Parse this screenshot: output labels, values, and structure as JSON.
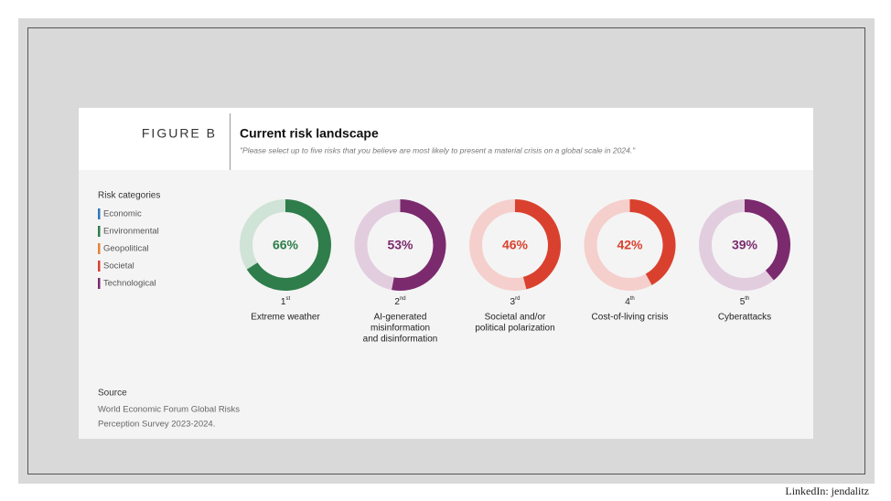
{
  "figure_label": "FIGURE B",
  "title": "Current risk landscape",
  "subtitle": "\"Please select up to five risks that you believe are most likely to present a material crisis on a global scale in 2024.\"",
  "legend": {
    "title": "Risk categories",
    "items": [
      {
        "name": "Economic",
        "color": "#2f78b7"
      },
      {
        "name": "Environmental",
        "color": "#2e7d4a"
      },
      {
        "name": "Geopolitical",
        "color": "#e8823a"
      },
      {
        "name": "Societal",
        "color": "#d9412e"
      },
      {
        "name": "Technological",
        "color": "#7b2a6e"
      }
    ]
  },
  "chart_data": [
    {
      "type": "donut",
      "rank": "1",
      "rank_suffix": "st",
      "name_lines": [
        "Extreme weather"
      ],
      "values": [
        66
      ],
      "value_labels": [
        "66%"
      ],
      "color": "#2e7d4a",
      "track_color": "#cfe3d6"
    },
    {
      "type": "donut",
      "rank": "2",
      "rank_suffix": "nd",
      "name_lines": [
        "AI-generated",
        "misinformation",
        "and disinformation"
      ],
      "values": [
        53
      ],
      "value_labels": [
        "53%"
      ],
      "color": "#7b2a6e",
      "track_color": "#e2cddf"
    },
    {
      "type": "donut",
      "rank": "3",
      "rank_suffix": "rd",
      "name_lines": [
        "Societal and/or",
        "political polarization"
      ],
      "values": [
        46
      ],
      "value_labels": [
        "46%"
      ],
      "color": "#d9412e",
      "track_color": "#f5cfcc"
    },
    {
      "type": "donut",
      "rank": "4",
      "rank_suffix": "th",
      "name_lines": [
        "Cost-of-living crisis"
      ],
      "values": [
        42
      ],
      "value_labels": [
        "42%"
      ],
      "color": "#d9412e",
      "track_color": "#f5cfcc"
    },
    {
      "type": "donut",
      "rank": "5",
      "rank_suffix": "th",
      "name_lines": [
        "Cyberattacks"
      ],
      "values": [
        39
      ],
      "value_labels": [
        "39%"
      ],
      "color": "#7b2a6e",
      "track_color": "#e2cddf"
    }
  ],
  "source": {
    "title": "Source",
    "lines": [
      "World Economic Forum Global Risks",
      "Perception Survey 2023-2024."
    ]
  },
  "credit": "LinkedIn: jendalitz"
}
